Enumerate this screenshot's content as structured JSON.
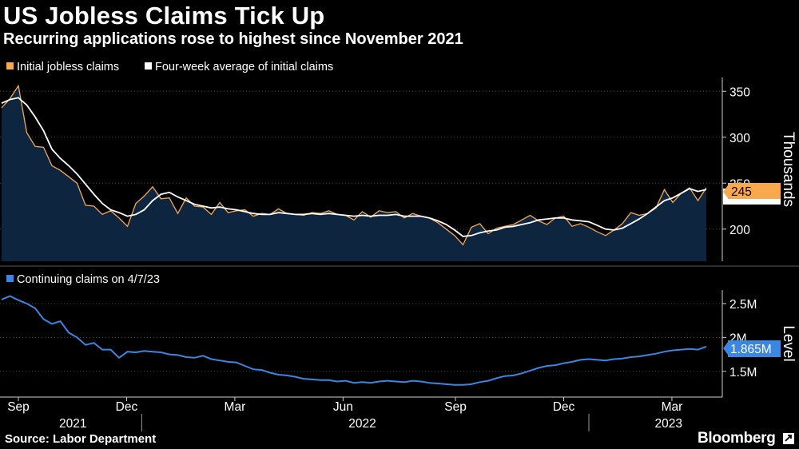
{
  "title": "US Jobless Claims Tick Up",
  "subtitle": "Recurring applications rose to highest since November 2021",
  "source": "Source: Labor Department",
  "brand": "Bloomberg",
  "colors": {
    "initial": "#F7A94B",
    "average": "#FFFFFF",
    "continuing": "#3B86E0",
    "area": "#0E2540",
    "grid": "#4a4a4a",
    "background": "#000000"
  },
  "chart_data": [
    {
      "type": "area",
      "name": "top-panel",
      "ylabel": "Thousands",
      "ylim": [
        165,
        365
      ],
      "yticks": [
        200,
        250,
        300,
        350
      ],
      "legend": [
        {
          "label": "Initial jobless claims",
          "color": "#F7A94B"
        },
        {
          "label": "Four-week average of initial claims",
          "color": "#FFFFFF"
        }
      ],
      "x_range": [
        0,
        84
      ],
      "series": [
        {
          "name": "Initial jobless claims",
          "x": [
            0,
            1,
            2,
            3,
            4,
            5,
            6,
            7,
            8,
            9,
            10,
            11,
            12,
            13,
            14,
            15,
            16,
            17,
            18,
            19,
            20,
            21,
            22,
            23,
            24,
            25,
            26,
            27,
            28,
            29,
            30,
            31,
            32,
            33,
            34,
            35,
            36,
            37,
            38,
            39,
            40,
            41,
            42,
            43,
            44,
            45,
            46,
            47,
            48,
            49,
            50,
            51,
            52,
            53,
            54,
            55,
            56,
            57,
            58,
            59,
            60,
            61,
            62,
            63,
            64,
            65,
            66,
            67,
            68,
            69,
            70,
            71,
            72,
            73,
            74,
            75,
            76,
            77,
            78,
            79,
            80,
            81,
            82,
            83,
            84
          ],
          "values": [
            332,
            342,
            356,
            305,
            290,
            289,
            269,
            264,
            257,
            250,
            226,
            225,
            216,
            220,
            212,
            203,
            228,
            236,
            246,
            233,
            234,
            217,
            234,
            225,
            224,
            216,
            229,
            218,
            220,
            221,
            214,
            217,
            216,
            222,
            217,
            216,
            215,
            218,
            217,
            220,
            216,
            215,
            210,
            219,
            213,
            220,
            218,
            219,
            212,
            217,
            214,
            212,
            207,
            200,
            193,
            183,
            202,
            206,
            195,
            201,
            203,
            205,
            210,
            215,
            209,
            205,
            212,
            214,
            203,
            206,
            202,
            197,
            193,
            199,
            206,
            218,
            215,
            217,
            223,
            243,
            229,
            239,
            245,
            231,
            245
          ]
        },
        {
          "name": "Four-week average of initial claims",
          "x": [
            0,
            1,
            2,
            3,
            4,
            5,
            6,
            7,
            8,
            9,
            10,
            11,
            12,
            13,
            14,
            15,
            16,
            17,
            18,
            19,
            20,
            21,
            22,
            23,
            24,
            25,
            26,
            27,
            28,
            29,
            30,
            31,
            32,
            33,
            34,
            35,
            36,
            37,
            38,
            39,
            40,
            41,
            42,
            43,
            44,
            45,
            46,
            47,
            48,
            49,
            50,
            51,
            52,
            53,
            54,
            55,
            56,
            57,
            58,
            59,
            60,
            61,
            62,
            63,
            64,
            65,
            66,
            67,
            68,
            69,
            70,
            71,
            72,
            73,
            74,
            75,
            76,
            77,
            78,
            79,
            80,
            81,
            82,
            83,
            84
          ],
          "values": [
            337,
            341,
            343,
            335,
            322,
            307,
            287,
            277,
            269,
            260,
            249,
            238,
            228,
            221,
            218,
            214,
            216,
            221,
            231,
            238,
            240,
            235,
            231,
            227,
            225,
            223,
            224,
            222,
            221,
            219,
            217,
            216,
            216,
            218,
            217,
            216,
            216,
            217,
            216,
            217,
            216,
            215,
            214,
            215,
            214,
            215,
            215,
            216,
            214,
            214,
            214,
            212,
            209,
            205,
            199,
            192,
            193,
            196,
            198,
            199,
            202,
            203,
            205,
            207,
            210,
            211,
            212,
            212,
            210,
            209,
            208,
            204,
            200,
            199,
            201,
            206,
            211,
            217,
            224,
            231,
            234,
            239,
            244,
            241,
            243
          ]
        }
      ],
      "badge": "245"
    },
    {
      "type": "line",
      "name": "bottom-panel",
      "ylabel": "Level",
      "ylim": [
        1.12,
        2.7
      ],
      "yticks": [
        1.5,
        2.0,
        2.5
      ],
      "ytick_labels": [
        "1.5M",
        "2M",
        "2.5M"
      ],
      "legend": [
        {
          "label": "Continuing claims on 4/7/23",
          "color": "#3B86E0"
        }
      ],
      "x_range": [
        0,
        84
      ],
      "series": [
        {
          "name": "Continuing claims on 4/7/23",
          "x": [
            0,
            1,
            2,
            3,
            4,
            5,
            6,
            7,
            8,
            9,
            10,
            11,
            12,
            13,
            14,
            15,
            16,
            17,
            18,
            19,
            20,
            21,
            22,
            23,
            24,
            25,
            26,
            27,
            28,
            29,
            30,
            31,
            32,
            33,
            34,
            35,
            36,
            37,
            38,
            39,
            40,
            41,
            42,
            43,
            44,
            45,
            46,
            47,
            48,
            49,
            50,
            51,
            52,
            53,
            54,
            55,
            56,
            57,
            58,
            59,
            60,
            61,
            62,
            63,
            64,
            65,
            66,
            67,
            68,
            69,
            70,
            71,
            72,
            73,
            74,
            75,
            76,
            77,
            78,
            79,
            80,
            81,
            82,
            83,
            84
          ],
          "values": [
            2.56,
            2.61,
            2.55,
            2.5,
            2.43,
            2.27,
            2.2,
            2.24,
            2.07,
            2.0,
            1.89,
            1.92,
            1.82,
            1.82,
            1.7,
            1.79,
            1.78,
            1.8,
            1.79,
            1.78,
            1.75,
            1.74,
            1.71,
            1.7,
            1.73,
            1.68,
            1.66,
            1.64,
            1.63,
            1.58,
            1.53,
            1.52,
            1.48,
            1.45,
            1.44,
            1.42,
            1.39,
            1.38,
            1.37,
            1.37,
            1.35,
            1.36,
            1.33,
            1.34,
            1.33,
            1.35,
            1.36,
            1.35,
            1.34,
            1.36,
            1.35,
            1.33,
            1.32,
            1.31,
            1.3,
            1.3,
            1.31,
            1.34,
            1.36,
            1.4,
            1.43,
            1.44,
            1.47,
            1.51,
            1.55,
            1.58,
            1.59,
            1.62,
            1.64,
            1.67,
            1.68,
            1.67,
            1.66,
            1.68,
            1.69,
            1.71,
            1.72,
            1.74,
            1.76,
            1.79,
            1.81,
            1.82,
            1.83,
            1.82,
            1.865
          ]
        }
      ],
      "badge": "1.865M"
    }
  ],
  "x_axis": {
    "ticks": [
      {
        "x": 2,
        "label": "Sep"
      },
      {
        "x": 14.9,
        "label": "Dec"
      },
      {
        "x": 27.8,
        "label": "Mar"
      },
      {
        "x": 40.7,
        "label": "Jun"
      },
      {
        "x": 54.1,
        "label": "Sep"
      },
      {
        "x": 67,
        "label": "Dec"
      },
      {
        "x": 79.9,
        "label": "Mar"
      }
    ],
    "years": [
      {
        "x": 8.5,
        "label": "2021"
      },
      {
        "x": 43,
        "label": "2022"
      },
      {
        "x": 79.5,
        "label": "2023"
      }
    ],
    "year_separators": [
      16.7,
      70
    ]
  }
}
